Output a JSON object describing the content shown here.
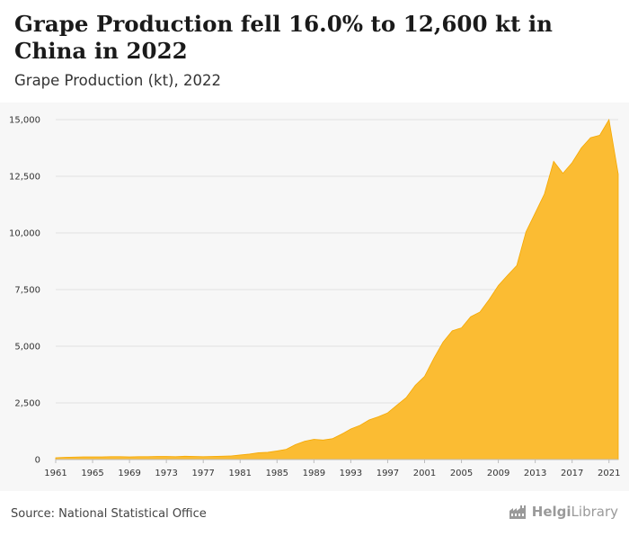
{
  "header": {
    "title": "Grape Production fell 16.0% to 12,600 kt in China in 2022",
    "subtitle": "Grape Production (kt), 2022"
  },
  "footer": {
    "source": "Source: National Statistical Office",
    "logo_text_bold": "Helgi",
    "logo_text_rest": "Library",
    "logo_icon": "factory-icon"
  },
  "colors": {
    "area": "#fbbc33",
    "area_stroke": "#f5a800",
    "grid": "#e2e2e2",
    "plot_bg": "#f7f7f7"
  },
  "chart_data": {
    "type": "area",
    "title": "Grape Production (kt), 2022",
    "xlabel": "",
    "ylabel": "",
    "ylim": [
      0,
      15000
    ],
    "yticks": [
      0,
      2500,
      5000,
      7500,
      10000,
      12500,
      15000
    ],
    "ytick_labels": [
      "0",
      "2,500",
      "5,000",
      "7,500",
      "10,000",
      "12,500",
      "15,000"
    ],
    "xticks": [
      1961,
      1965,
      1969,
      1973,
      1977,
      1981,
      1985,
      1989,
      1993,
      1997,
      2001,
      2005,
      2009,
      2013,
      2017,
      2021
    ],
    "xlim": [
      1961,
      2022
    ],
    "grid": true,
    "x": [
      1961,
      1962,
      1963,
      1964,
      1965,
      1966,
      1967,
      1968,
      1969,
      1970,
      1971,
      1972,
      1973,
      1974,
      1975,
      1976,
      1977,
      1978,
      1979,
      1980,
      1981,
      1982,
      1983,
      1984,
      1985,
      1986,
      1987,
      1988,
      1989,
      1990,
      1991,
      1992,
      1993,
      1994,
      1995,
      1996,
      1997,
      1998,
      1999,
      2000,
      2001,
      2002,
      2003,
      2004,
      2005,
      2006,
      2007,
      2008,
      2009,
      2010,
      2011,
      2012,
      2013,
      2014,
      2015,
      2016,
      2017,
      2018,
      2019,
      2020,
      2021,
      2022
    ],
    "values": [
      80,
      100,
      110,
      120,
      120,
      120,
      130,
      130,
      120,
      130,
      130,
      140,
      140,
      130,
      150,
      140,
      130,
      140,
      150,
      160,
      200,
      240,
      300,
      320,
      380,
      450,
      660,
      810,
      890,
      860,
      920,
      1120,
      1350,
      1510,
      1750,
      1890,
      2060,
      2400,
      2730,
      3280,
      3670,
      4460,
      5180,
      5680,
      5810,
      6300,
      6510,
      7060,
      7680,
      8130,
      8560,
      10050,
      10880,
      11720,
      13160,
      12630,
      13100,
      13750,
      14200,
      14310,
      15000,
      12600
    ]
  }
}
